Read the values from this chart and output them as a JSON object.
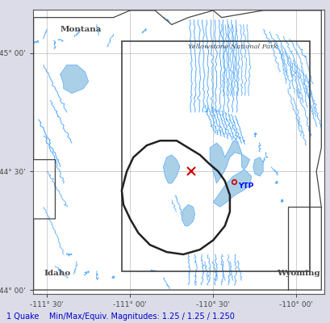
{
  "xlim": [
    -111.583,
    -109.833
  ],
  "ylim": [
    43.983,
    45.183
  ],
  "xticks": [
    -111.5,
    -111.0,
    -110.5,
    -110.0
  ],
  "yticks": [
    44.0,
    44.5,
    45.0
  ],
  "bg_color": "#dcdce8",
  "map_bg": "#ffffff",
  "state_boundary_color": "#444444",
  "caldera_color": "#222222",
  "river_color": "#55aaff",
  "lake_color": "#aad0e8",
  "lake_edge_color": "#55aaff",
  "box_color": "#333333",
  "bottom_text": "1 Quake    Min/Max/Equiv. Magnitudes: 1.25 / 1.25 / 1.250",
  "bottom_text_color": "#0000cc",
  "grid_color": "#aaaaaa",
  "font_color_labels": "#444444",
  "label_montana": [
    -111.42,
    45.09
  ],
  "label_idaho": [
    -111.52,
    44.06
  ],
  "label_wyoming": [
    -110.12,
    44.06
  ],
  "label_ynp": [
    -110.65,
    45.02
  ],
  "label_ytp": [
    -110.35,
    44.43
  ],
  "quake_lon": -110.375,
  "quake_lat": 44.458,
  "cross_lon": -110.63,
  "cross_lat": 44.5,
  "cross_color": "#cc0000",
  "quake_color_circle": "#cc0000"
}
